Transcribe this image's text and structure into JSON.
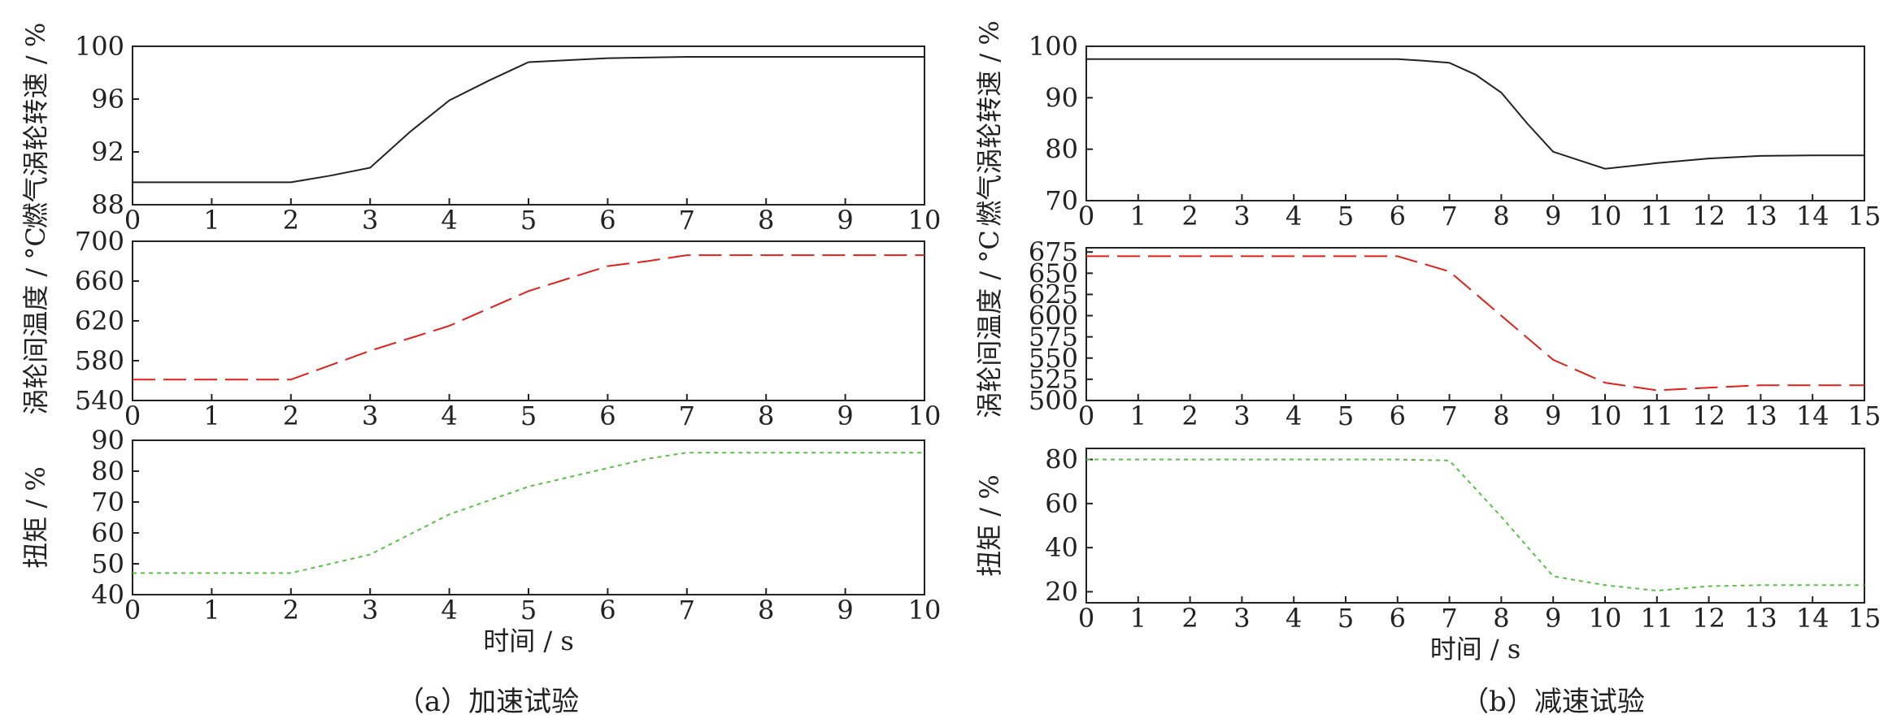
{
  "figure": {
    "captions": [
      "（a）加速试验",
      "（b）减速试验"
    ]
  },
  "chart_data": [
    {
      "type": "line",
      "panel": "a-top",
      "ylabel": "燃气涡轮转速 / %",
      "xlabel": "",
      "xlim": [
        0,
        10
      ],
      "ylim": [
        88,
        100
      ],
      "xticks": [
        0,
        1,
        2,
        3,
        4,
        5,
        6,
        7,
        8,
        9,
        10
      ],
      "yticks": [
        88,
        92,
        96,
        100
      ],
      "series": [
        {
          "color": "#222222",
          "dash": "solid",
          "x": [
            0,
            2,
            2.5,
            3,
            3.5,
            4,
            4.5,
            5,
            6,
            7,
            8,
            9,
            10
          ],
          "y": [
            89.7,
            89.7,
            90.2,
            90.8,
            93.5,
            95.9,
            97.4,
            98.8,
            99.1,
            99.2,
            99.2,
            99.2,
            99.2
          ]
        }
      ]
    },
    {
      "type": "line",
      "panel": "a-mid",
      "ylabel": "涡轮间温度 / °C",
      "xlabel": "",
      "xlim": [
        0,
        10
      ],
      "ylim": [
        540,
        700
      ],
      "xticks": [
        0,
        1,
        2,
        3,
        4,
        5,
        6,
        7,
        8,
        9,
        10
      ],
      "yticks": [
        540,
        580,
        620,
        660,
        700
      ],
      "series": [
        {
          "color": "#e0201b",
          "dash": "long",
          "x": [
            0,
            2,
            3,
            4,
            5,
            6,
            6.5,
            7,
            8,
            9,
            10
          ],
          "y": [
            561,
            561,
            590,
            615,
            650,
            675,
            680,
            686,
            686,
            686,
            686
          ]
        }
      ]
    },
    {
      "type": "line",
      "panel": "a-bot",
      "ylabel": "扭矩 / %",
      "xlabel": "时间 / s",
      "xlim": [
        0,
        10
      ],
      "ylim": [
        40,
        90
      ],
      "xticks": [
        0,
        1,
        2,
        3,
        4,
        5,
        6,
        7,
        8,
        9,
        10
      ],
      "yticks": [
        40,
        50,
        60,
        70,
        80,
        90
      ],
      "series": [
        {
          "color": "#5cbf4a",
          "dash": "dot",
          "x": [
            0,
            2,
            3,
            4,
            5,
            6,
            6.5,
            7,
            8,
            9,
            10
          ],
          "y": [
            47,
            47,
            53,
            66,
            75,
            81,
            84,
            86,
            86,
            86,
            86
          ]
        }
      ]
    },
    {
      "type": "line",
      "panel": "b-top",
      "ylabel": "燃气涡轮转速 / %",
      "xlabel": "",
      "xlim": [
        0,
        15
      ],
      "ylim": [
        70,
        100
      ],
      "xticks": [
        0,
        1,
        2,
        3,
        4,
        5,
        6,
        7,
        8,
        9,
        10,
        11,
        12,
        13,
        14,
        15
      ],
      "yticks": [
        70,
        80,
        90,
        100
      ],
      "series": [
        {
          "color": "#222222",
          "dash": "solid",
          "x": [
            0,
            6,
            6.5,
            7,
            7.5,
            8,
            8.5,
            9,
            10,
            11,
            12,
            13,
            14,
            15
          ],
          "y": [
            97.5,
            97.5,
            97.2,
            96.8,
            94.5,
            91,
            85,
            79.5,
            76.2,
            77.3,
            78.2,
            78.7,
            78.8,
            78.8
          ]
        }
      ]
    },
    {
      "type": "line",
      "panel": "b-mid",
      "ylabel": "涡轮间温度 / °C",
      "xlabel": "",
      "xlim": [
        0,
        15
      ],
      "ylim": [
        500,
        680
      ],
      "xticks": [
        0,
        1,
        2,
        3,
        4,
        5,
        6,
        7,
        8,
        9,
        10,
        11,
        12,
        13,
        14,
        15
      ],
      "yticks": [
        500,
        525,
        550,
        575,
        600,
        625,
        650,
        675
      ],
      "series": [
        {
          "color": "#e0201b",
          "dash": "long",
          "x": [
            0,
            6,
            7,
            8,
            9,
            10,
            11,
            12,
            13,
            14,
            15
          ],
          "y": [
            670,
            670,
            652,
            600,
            548,
            521,
            512,
            515,
            518,
            518,
            518
          ]
        }
      ]
    },
    {
      "type": "line",
      "panel": "b-bot",
      "ylabel": "扭矩 / %",
      "xlabel": "时间 / s",
      "xlim": [
        0,
        15
      ],
      "ylim": [
        15,
        85
      ],
      "xticks": [
        0,
        1,
        2,
        3,
        4,
        5,
        6,
        7,
        8,
        9,
        10,
        11,
        12,
        13,
        14,
        15
      ],
      "yticks": [
        20,
        40,
        60,
        80
      ],
      "series": [
        {
          "color": "#5cbf4a",
          "dash": "dot",
          "x": [
            0,
            6,
            7,
            8,
            9,
            10,
            11,
            12,
            13,
            14,
            15
          ],
          "y": [
            80,
            80,
            79.5,
            54,
            27,
            23,
            20.5,
            22.5,
            23,
            23,
            23
          ]
        }
      ]
    }
  ]
}
